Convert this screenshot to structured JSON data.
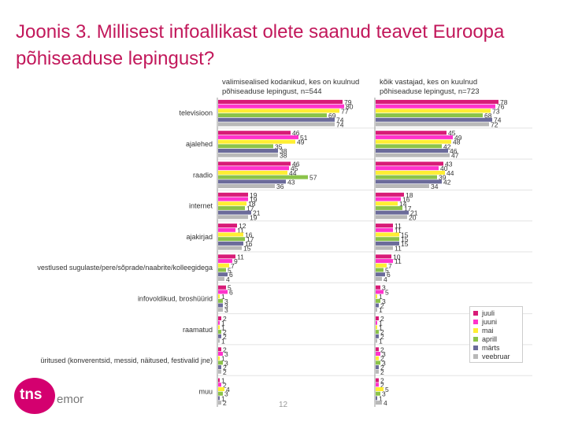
{
  "slide": {
    "title": "Joonis 3. Millisest infoallikast olete saanud teavet Euroopa põhiseaduse lepingust?",
    "page_number": "12"
  },
  "logo": {
    "brand": "tns",
    "sub": "emor"
  },
  "colors": {
    "juuli": "#d81b77",
    "juuni": "#ff33cc",
    "mai": "#ffee33",
    "aprill": "#8bc34a",
    "märts": "#6b6b9a",
    "veebruar": "#b8b8b8"
  },
  "chart_data": {
    "type": "bar",
    "orientation": "horizontal",
    "title": "Joonis 3. Millisest infoallikast olete saanud teavet Euroopa põhiseaduse lepingust?",
    "legend_position": "bottom-right",
    "categories": [
      "televisioon",
      "ajalehed",
      "raadio",
      "internet",
      "ajakirjad",
      "vestlused sugulaste/pere/sõprade/naabrite/kolleegidega",
      "infovoldikud, broshüürid",
      "raamatud",
      "üritused (konverentsid, messid, näitused, festivalid jne)",
      "muu"
    ],
    "series_names": [
      "juuli",
      "juuni",
      "mai",
      "aprill",
      "märts",
      "veebruar"
    ],
    "panels": [
      {
        "subtitle": "valimisealised kodanikud, kes on kuulnud põhiseaduse lepingust, n=544",
        "max": 100,
        "values": [
          [
            79,
            80,
            77,
            69,
            74,
            74
          ],
          [
            46,
            51,
            49,
            35,
            38,
            38
          ],
          [
            46,
            45,
            44,
            57,
            43,
            36
          ],
          [
            19,
            19,
            18,
            17,
            21,
            19
          ],
          [
            12,
            11,
            16,
            17,
            16,
            15
          ],
          [
            11,
            9,
            7,
            5,
            6,
            4
          ],
          [
            5,
            6,
            1,
            3,
            3,
            3
          ],
          [
            2,
            1,
            1,
            2,
            2,
            1
          ],
          [
            2,
            3,
            1,
            3,
            2,
            2
          ],
          [
            1,
            2,
            4,
            3,
            1,
            2
          ]
        ]
      },
      {
        "subtitle": "kõik vastajad, kes on kuulnud põhiseaduse lepingust, n=723",
        "max": 100,
        "values": [
          [
            78,
            76,
            73,
            68,
            74,
            72
          ],
          [
            45,
            49,
            48,
            42,
            46,
            47
          ],
          [
            43,
            40,
            44,
            39,
            42,
            34
          ],
          [
            18,
            16,
            14,
            17,
            21,
            20
          ],
          [
            11,
            11,
            15,
            15,
            15,
            11
          ],
          [
            10,
            11,
            7,
            5,
            6,
            4
          ],
          [
            3,
            5,
            1,
            3,
            2,
            1
          ],
          [
            2,
            1,
            1,
            2,
            2,
            1
          ],
          [
            2,
            3,
            2,
            3,
            2,
            2
          ],
          [
            2,
            2,
            5,
            3,
            1,
            4
          ]
        ]
      }
    ]
  }
}
